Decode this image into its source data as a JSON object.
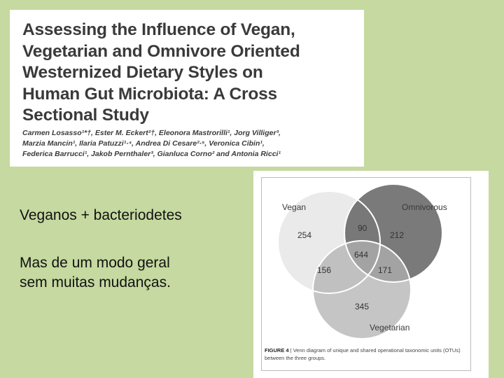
{
  "paper": {
    "title_lines": [
      "Assessing the Influence of Vegan,",
      "Vegetarian and Omnivore Oriented",
      "Westernized Dietary Styles on",
      "Human Gut Microbiota: A Cross",
      "Sectional Study"
    ],
    "author_lines": [
      "Carmen Losasso¹*†, Ester M. Eckert²†, Eleonora Mastrorilli¹, Jorg Villiger³,",
      "Marzia Mancin¹, Ilaria Patuzzi¹·⁴, Andrea Di Cesare²·⁵, Veronica Cibin¹,",
      "Federica Barrucci¹, Jakob Pernthaler³, Gianluca Corno² and Antonia Ricci¹"
    ]
  },
  "slide": {
    "bullet1": "Veganos + bacteriodetes",
    "bullet2_line1": "Mas de um modo geral",
    "bullet2_line2": "sem muitas mudanças."
  },
  "figure": {
    "labels": {
      "vegan": "Vegan",
      "omnivorous": "Omnivorous",
      "vegetarian": "Vegetarian"
    },
    "counts": {
      "vegan_only": "254",
      "omnivorous_only": "212",
      "vegetarian_only": "345",
      "vegan_omnivorous": "90",
      "vegan_vegetarian": "156",
      "omnivorous_vegetarian": "171",
      "all_three": "644"
    },
    "caption_label": "FIGURE 4",
    "caption_text": " | Venn diagram of unique and shared operational taxonomic units (OTUs) between the three groups.",
    "colors": {
      "vegan": "#e6e6e6",
      "omnivorous": "#6b6b6b",
      "vegetarian": "#b2b2b2"
    }
  }
}
